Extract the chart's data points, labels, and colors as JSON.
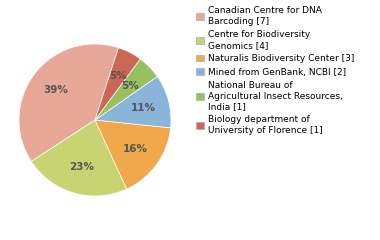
{
  "labels": [
    "Canadian Centre for DNA\nBarcoding [7]",
    "Centre for Biodiversity\nGenomics [4]",
    "Naturalis Biodiversity Center [3]",
    "Mined from GenBank, NCBI [2]",
    "National Bureau of\nAgricultural Insect Resources,\nIndia [1]",
    "Biology department of\nUniversity of Florence [1]"
  ],
  "values": [
    38,
    22,
    16,
    11,
    5,
    5
  ],
  "colors": [
    "#e8a898",
    "#c8d472",
    "#f0a84a",
    "#8ab4d8",
    "#98c060",
    "#cc6655"
  ],
  "pct_colors": [
    "#555555",
    "#555555",
    "#555555",
    "#555555",
    "#555555",
    "#555555"
  ],
  "autopct_fontsize": 7.5,
  "legend_fontsize": 6.5,
  "startangle": 72,
  "background_color": "#ffffff"
}
